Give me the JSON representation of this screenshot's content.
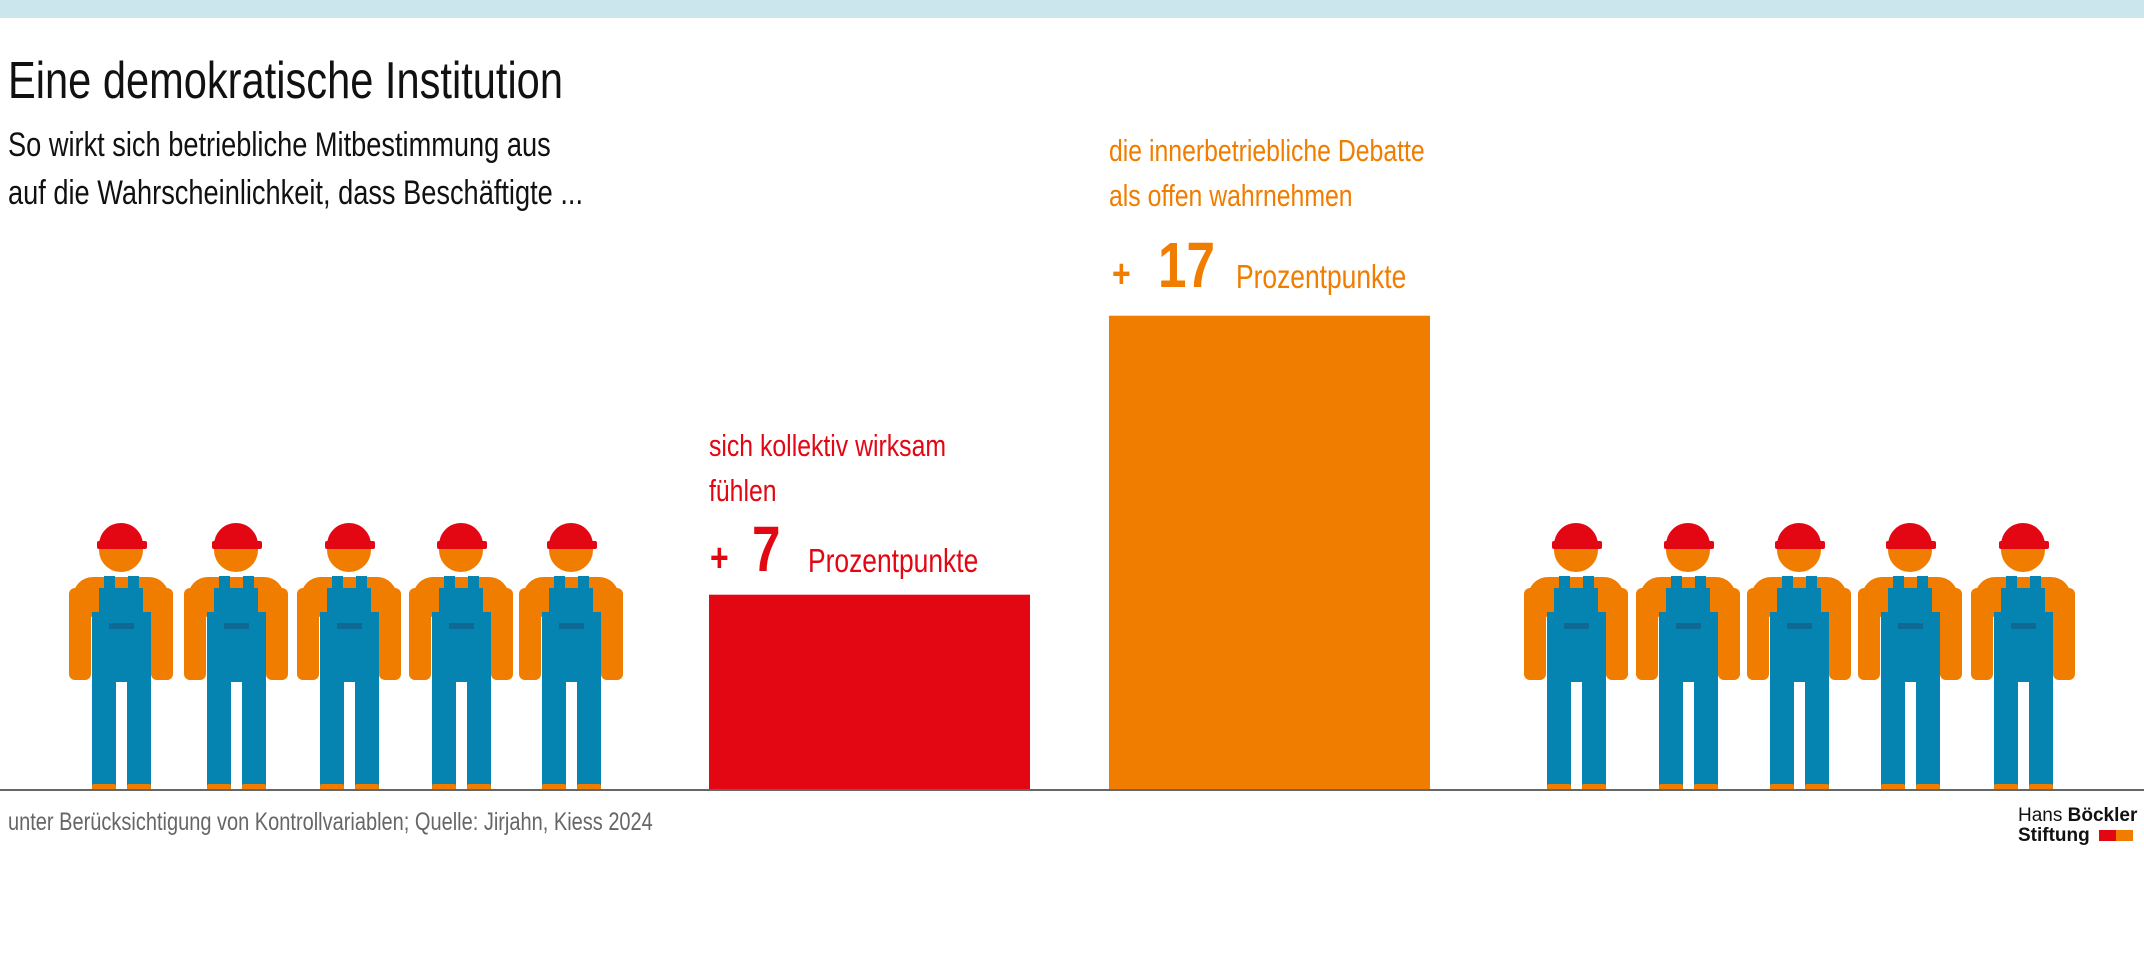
{
  "header": {
    "title": "Eine demokratische Institution",
    "subtitle_line1": "So wirkt sich betriebliche Mitbestimmung aus",
    "subtitle_line2": "auf die Wahrscheinlichkeit, dass Beschäftigte ..."
  },
  "chart_data": {
    "type": "bar",
    "categories": [
      "sich kollektiv wirksam fühlen",
      "die innerbetriebliche Debatte als offen wahrnehmen"
    ],
    "values": [
      7,
      17
    ],
    "unit": "Prozentpunkte",
    "colors": [
      "#e30613",
      "#f07d00"
    ],
    "labels": [
      {
        "line1": "sich kollektiv wirksam",
        "line2": "fühlen",
        "sign": "+",
        "value": "7",
        "unit": "Prozentpunkte"
      },
      {
        "line1": "die innerbetriebliche Debatte",
        "line2": "als offen wahrnehmen",
        "sign": "+",
        "value": "17",
        "unit": "Prozentpunkte"
      }
    ],
    "grid": false,
    "decoration": "worker-icons"
  },
  "footer": {
    "source": "unter Berücksichtigung von Kontrollvariablen; Quelle: Jirjahn, Kiess 2024"
  },
  "logo": {
    "line1_regular": "Hans",
    "line1_bold": "Böckler",
    "line2": "Stiftung"
  },
  "colors": {
    "band": "#cce6ee",
    "red": "#e30613",
    "orange": "#f07d00",
    "blue": "#0584b2"
  }
}
